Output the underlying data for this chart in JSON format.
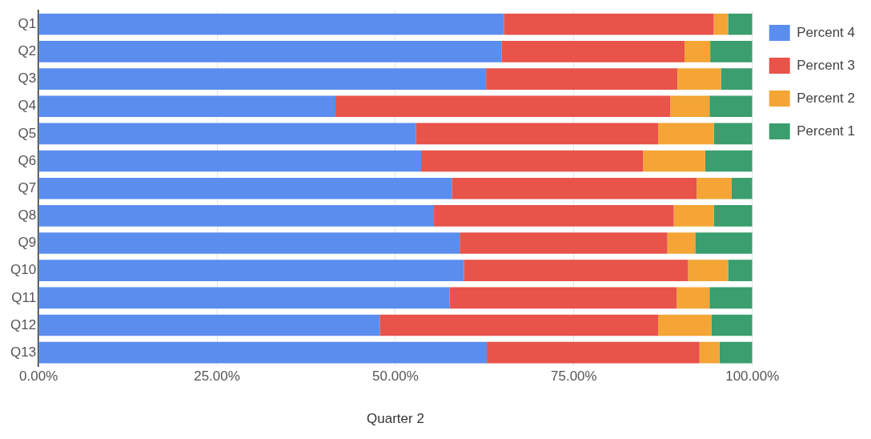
{
  "chart_data": {
    "type": "bar",
    "orientation": "horizontal",
    "stacked": true,
    "xlabel": "Quarter 2",
    "categories": [
      "Q1",
      "Q2",
      "Q3",
      "Q4",
      "Q5",
      "Q6",
      "Q7",
      "Q8",
      "Q9",
      "Q10",
      "Q11",
      "Q12",
      "Q13"
    ],
    "series": [
      {
        "name": "Percent 4",
        "color": "#5b8def",
        "values": [
          65.2,
          64.9,
          62.7,
          41.6,
          52.9,
          53.6,
          57.9,
          55.4,
          59.0,
          59.6,
          57.6,
          47.8,
          62.8
        ]
      },
      {
        "name": "Percent 3",
        "color": "#e8534a",
        "values": [
          29.4,
          25.6,
          26.8,
          46.9,
          33.9,
          31.1,
          34.3,
          33.6,
          29.1,
          31.4,
          31.8,
          39.0,
          29.8
        ]
      },
      {
        "name": "Percent 2",
        "color": "#f4a535",
        "values": [
          2.0,
          3.6,
          6.1,
          5.5,
          7.8,
          8.7,
          4.9,
          5.6,
          3.9,
          5.6,
          4.6,
          7.5,
          2.8
        ]
      },
      {
        "name": "Percent 1",
        "color": "#3a9e6e",
        "values": [
          3.4,
          5.9,
          4.4,
          6.0,
          5.4,
          6.6,
          2.9,
          5.4,
          8.0,
          3.4,
          6.0,
          5.7,
          4.6
        ]
      }
    ],
    "xlim": [
      0,
      100
    ],
    "xticks": [
      {
        "value": 0,
        "label": "0.00%"
      },
      {
        "value": 25,
        "label": "25.00%"
      },
      {
        "value": 50,
        "label": "50.00%"
      },
      {
        "value": 75,
        "label": "75.00%"
      },
      {
        "value": 100,
        "label": "100.00%"
      }
    ],
    "grid": "x",
    "legend": "top right"
  }
}
